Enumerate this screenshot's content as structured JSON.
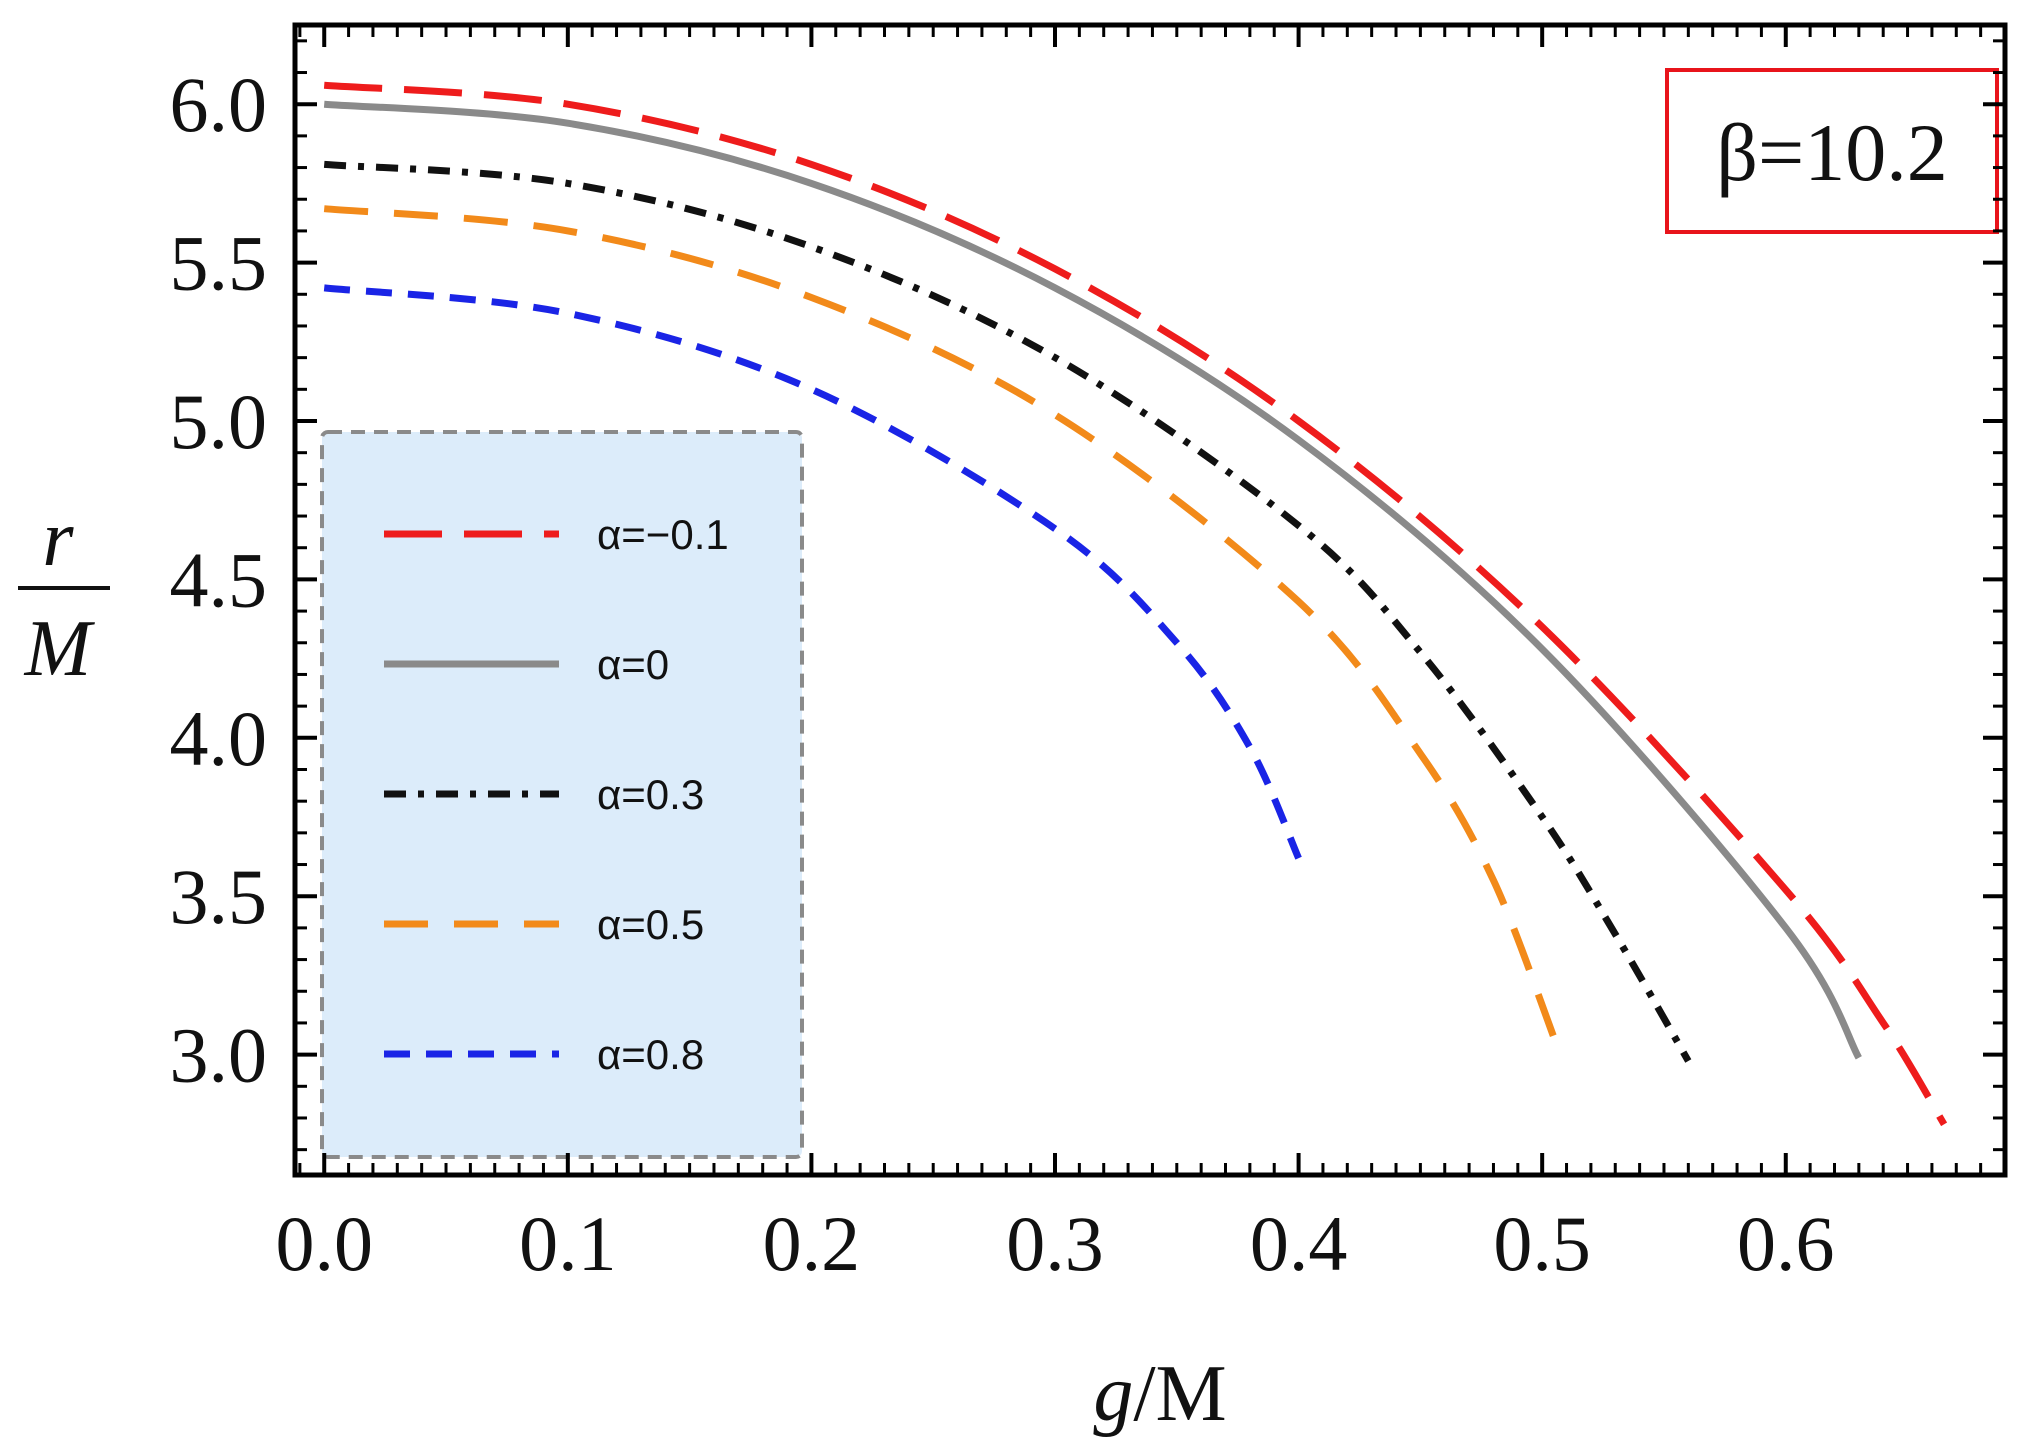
{
  "chart_data": {
    "type": "line",
    "title": "",
    "xlabel": {
      "italic": "g",
      "rest": "/M"
    },
    "ylabel": {
      "numerator": "r",
      "denominator": "M"
    },
    "xlim": [
      -0.012,
      0.69
    ],
    "ylim": [
      2.62,
      6.25
    ],
    "xticks": [
      0,
      0.1,
      0.2,
      0.3,
      0.4,
      0.5,
      0.6
    ],
    "xtick_labels": [
      "0.0",
      "0.1",
      "0.2",
      "0.3",
      "0.4",
      "0.5",
      "0.6"
    ],
    "yticks": [
      3.0,
      3.5,
      4.0,
      4.5,
      5.0,
      5.5,
      6.0
    ],
    "ytick_labels": [
      "3.0",
      "3.5",
      "4.0",
      "4.5",
      "5.0",
      "5.5",
      "6.0"
    ],
    "annotation": {
      "text": "β=10.2",
      "color": "#e8141b"
    },
    "legend": {
      "placement": "left-bottom",
      "background": "#dcecfa",
      "border_color": "#8a8a8a"
    },
    "series": [
      {
        "name": "α=-0.1",
        "label": "α=−0.1",
        "color": "#ee1c1c",
        "dash": "long",
        "x": [
          0,
          0.1,
          0.2,
          0.3,
          0.4,
          0.5,
          0.6,
          0.64,
          0.665
        ],
        "y": [
          6.06,
          6.0,
          5.81,
          5.48,
          5.0,
          4.35,
          3.52,
          3.1,
          2.78
        ]
      },
      {
        "name": "α=0",
        "label": "α=0",
        "color": "#8a8a8a",
        "dash": "solid",
        "x": [
          0,
          0.1,
          0.2,
          0.3,
          0.4,
          0.5,
          0.6,
          0.63
        ],
        "y": [
          6.0,
          5.94,
          5.75,
          5.42,
          4.94,
          4.28,
          3.4,
          2.99
        ]
      },
      {
        "name": "α=0.3",
        "label": "α=0.3",
        "color": "#111111",
        "dash": "dashdot",
        "x": [
          0,
          0.1,
          0.2,
          0.3,
          0.4,
          0.45,
          0.5,
          0.53,
          0.56
        ],
        "y": [
          5.81,
          5.75,
          5.55,
          5.2,
          4.67,
          4.27,
          3.75,
          3.38,
          2.98
        ]
      },
      {
        "name": "α=0.5",
        "label": "α=0.5",
        "color": "#f28a1a",
        "dash": "medium",
        "x": [
          0,
          0.1,
          0.2,
          0.3,
          0.4,
          0.45,
          0.48,
          0.505
        ],
        "y": [
          5.67,
          5.6,
          5.39,
          5.02,
          4.43,
          3.95,
          3.55,
          3.05
        ]
      },
      {
        "name": "α=0.8",
        "label": "α=0.8",
        "color": "#1a24e6",
        "dash": "short",
        "x": [
          0,
          0.1,
          0.2,
          0.3,
          0.35,
          0.38,
          0.4
        ],
        "y": [
          5.42,
          5.34,
          5.1,
          4.66,
          4.3,
          3.97,
          3.62
        ]
      }
    ]
  }
}
